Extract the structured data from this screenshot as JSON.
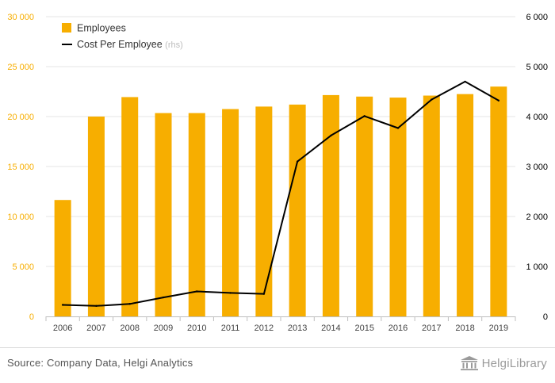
{
  "chart_data": {
    "type": "bar",
    "categories": [
      "2006",
      "2007",
      "2008",
      "2009",
      "2010",
      "2011",
      "2012",
      "2013",
      "2014",
      "2015",
      "2016",
      "2017",
      "2018",
      "2019"
    ],
    "series": [
      {
        "name": "Employees",
        "type": "bar",
        "axis": "left",
        "color": "#F7AE00",
        "values": [
          11650,
          20000,
          21950,
          20350,
          20350,
          20750,
          21000,
          21200,
          22150,
          22000,
          21900,
          22100,
          22250,
          23000
        ]
      },
      {
        "name": "Cost Per Employee",
        "type": "line",
        "axis": "right",
        "color": "#000000",
        "values": [
          230,
          210,
          250,
          380,
          500,
          470,
          450,
          3100,
          3620,
          4010,
          3770,
          4340,
          4700,
          4320
        ]
      }
    ],
    "legend": {
      "position": "top-left",
      "items": [
        {
          "label": "Employees",
          "suffix": ""
        },
        {
          "label": "Cost Per Employee",
          "suffix": "(rhs)"
        }
      ]
    },
    "left_axis": {
      "min": 0,
      "max": 30000,
      "ticks": [
        0,
        5000,
        10000,
        15000,
        20000,
        25000,
        30000
      ],
      "tick_labels": [
        "0",
        "5 000",
        "10 000",
        "15 000",
        "20 000",
        "25 000",
        "30 000"
      ],
      "label_color": "#F7AE00"
    },
    "right_axis": {
      "min": 0,
      "max": 6000,
      "ticks": [
        0,
        1000,
        2000,
        3000,
        4000,
        5000,
        6000
      ],
      "tick_labels": [
        "0",
        "1 000",
        "2 000",
        "3 000",
        "4 000",
        "5 000",
        "6 000"
      ],
      "label_color": "#000000"
    },
    "grid": true
  },
  "footer": {
    "source": "Source: Company Data, Helgi Analytics",
    "logo_text": "HelgiLibrary",
    "logo_icon": "library-building-icon"
  }
}
